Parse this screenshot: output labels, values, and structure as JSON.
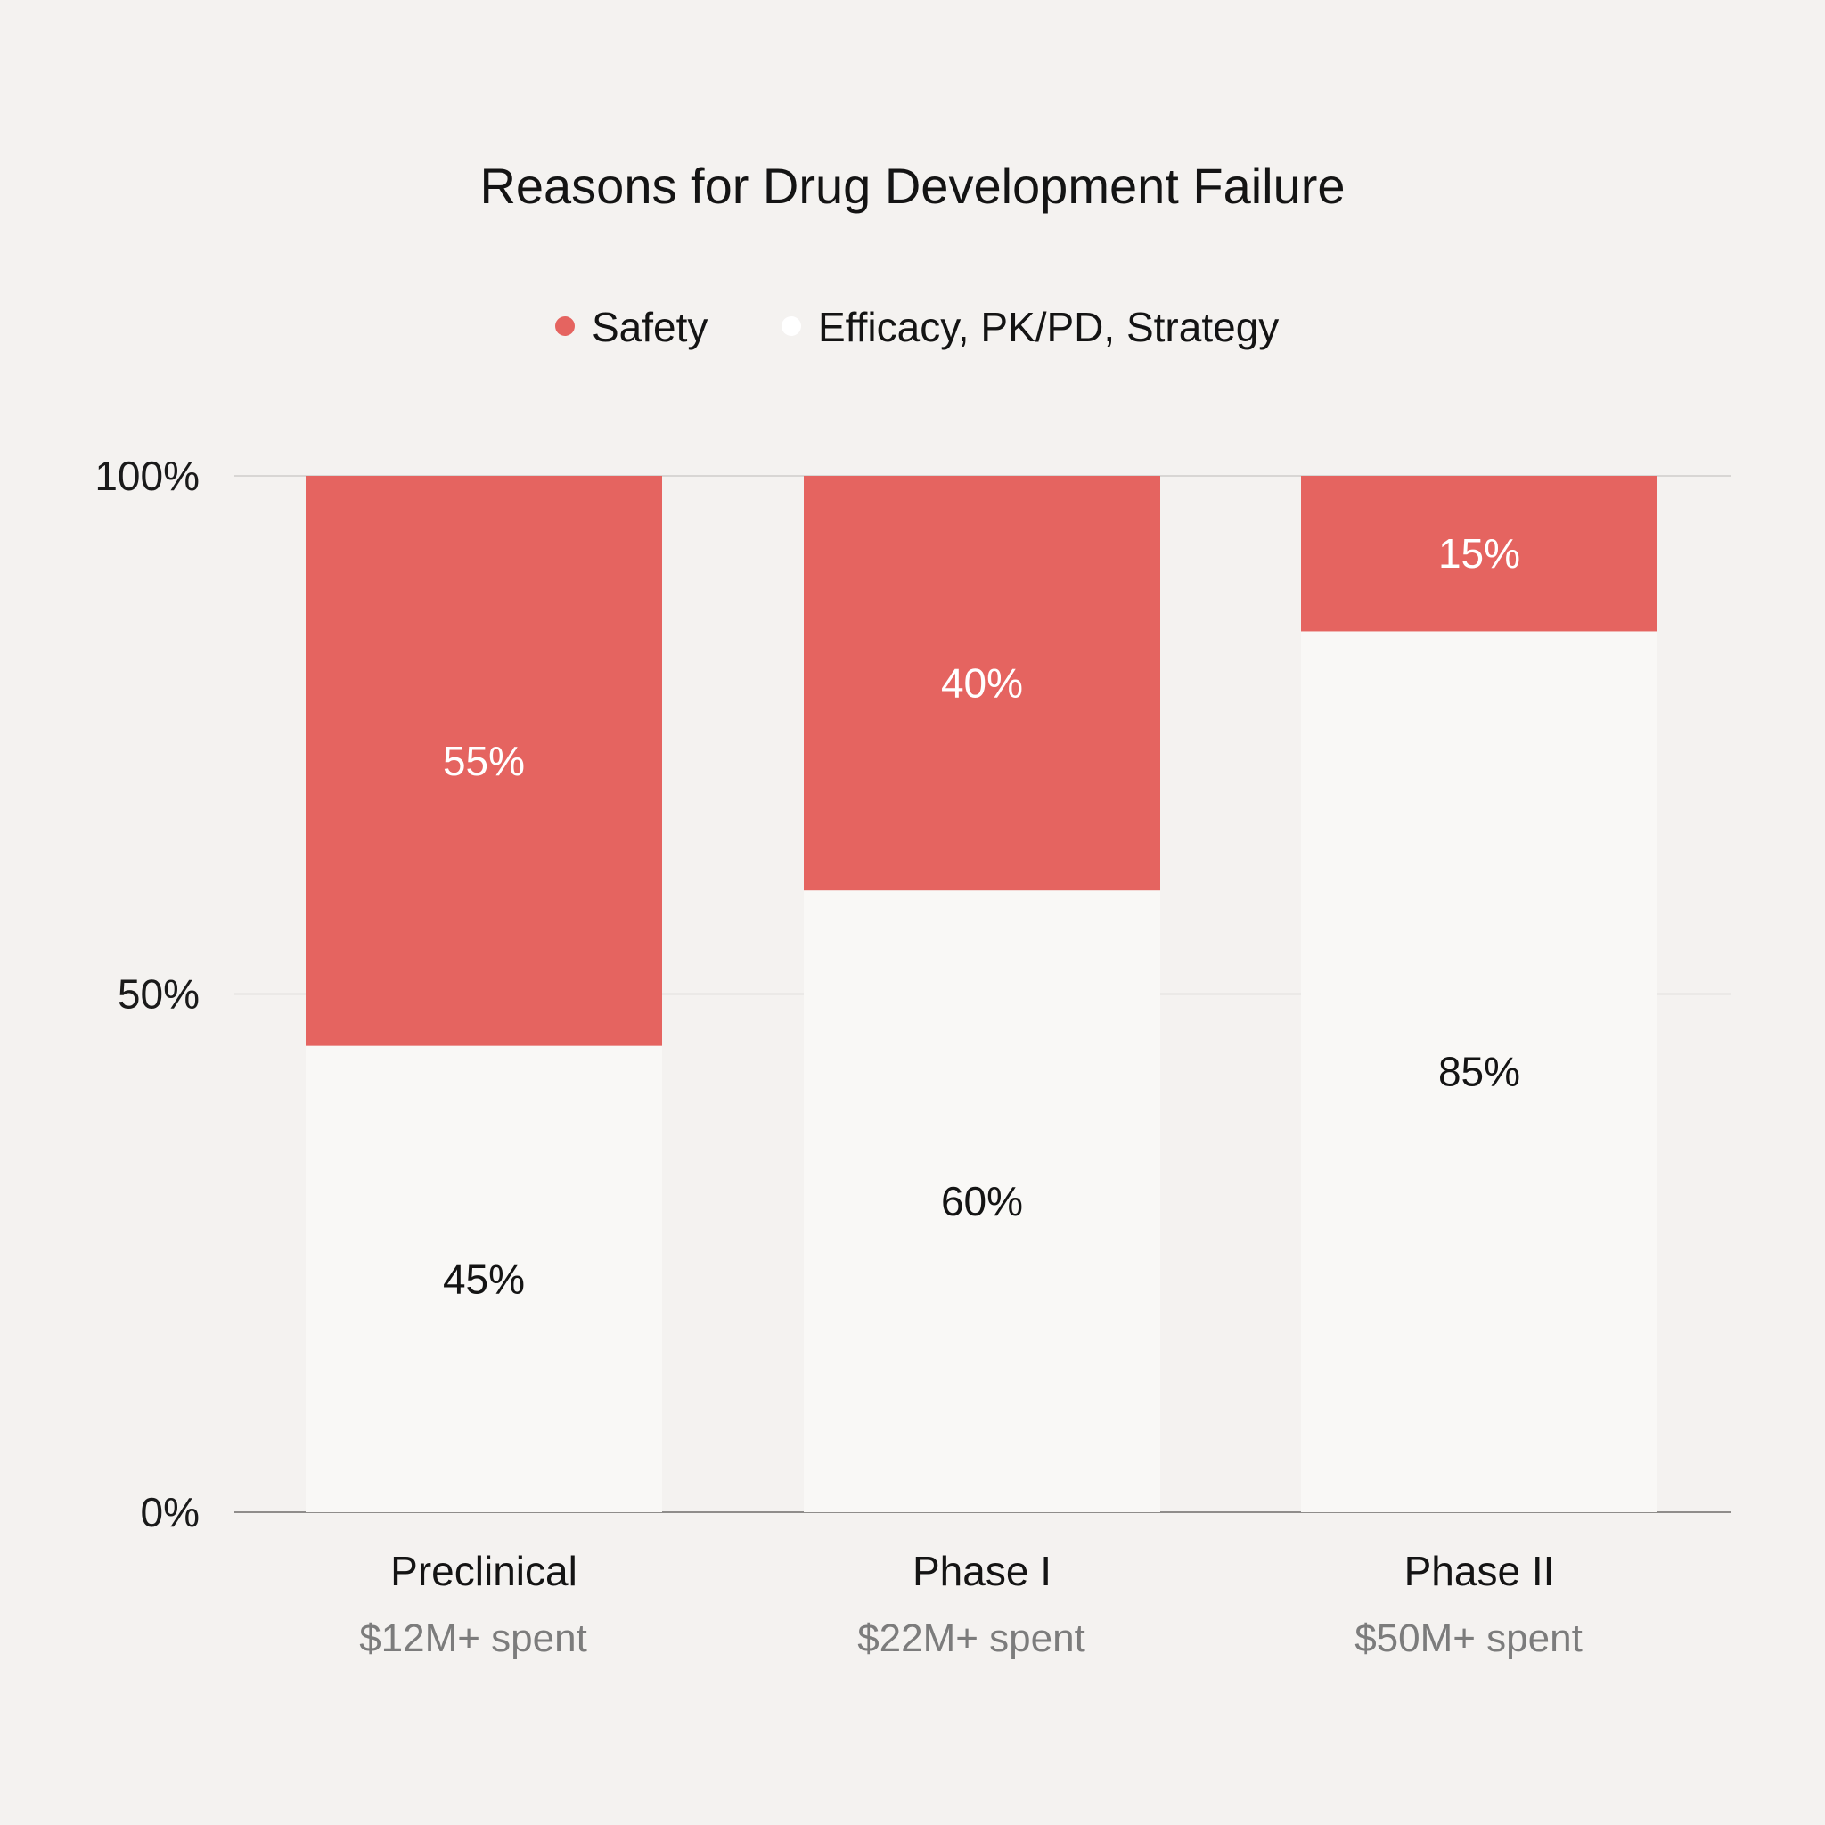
{
  "chart_data": {
    "type": "bar",
    "stacked": true,
    "title": "Reasons for Drug Development Failure",
    "categories": [
      "Preclinical",
      "Phase I",
      "Phase II"
    ],
    "category_subtitles": [
      "$12M+ spent",
      "$22M+ spent",
      "$50M+ spent"
    ],
    "series": [
      {
        "name": "Efficacy, PK/PD, Strategy",
        "values": [
          45,
          60,
          85
        ],
        "labels": [
          "45%",
          "60%",
          "85%"
        ],
        "color": "#f9f8f6",
        "label_color": "#141414"
      },
      {
        "name": "Safety",
        "values": [
          55,
          40,
          15
        ],
        "labels": [
          "55%",
          "40%",
          "15%"
        ],
        "color": "#e56460",
        "label_color": "#ffffff"
      }
    ],
    "legend": [
      {
        "name": "Safety",
        "color": "#e56460"
      },
      {
        "name": "Efficacy, PK/PD, Strategy",
        "color": "#ffffff"
      }
    ],
    "legend_position": "top-center",
    "y_ticks": [
      {
        "value": 0,
        "label": "0%"
      },
      {
        "value": 50,
        "label": "50%"
      },
      {
        "value": 100,
        "label": "100%"
      }
    ],
    "ylim": [
      0,
      100
    ],
    "xlabel": "",
    "ylabel": "",
    "grid": true,
    "gridline_color": "#cfcdcb",
    "background_color": "#f4f2f0"
  }
}
